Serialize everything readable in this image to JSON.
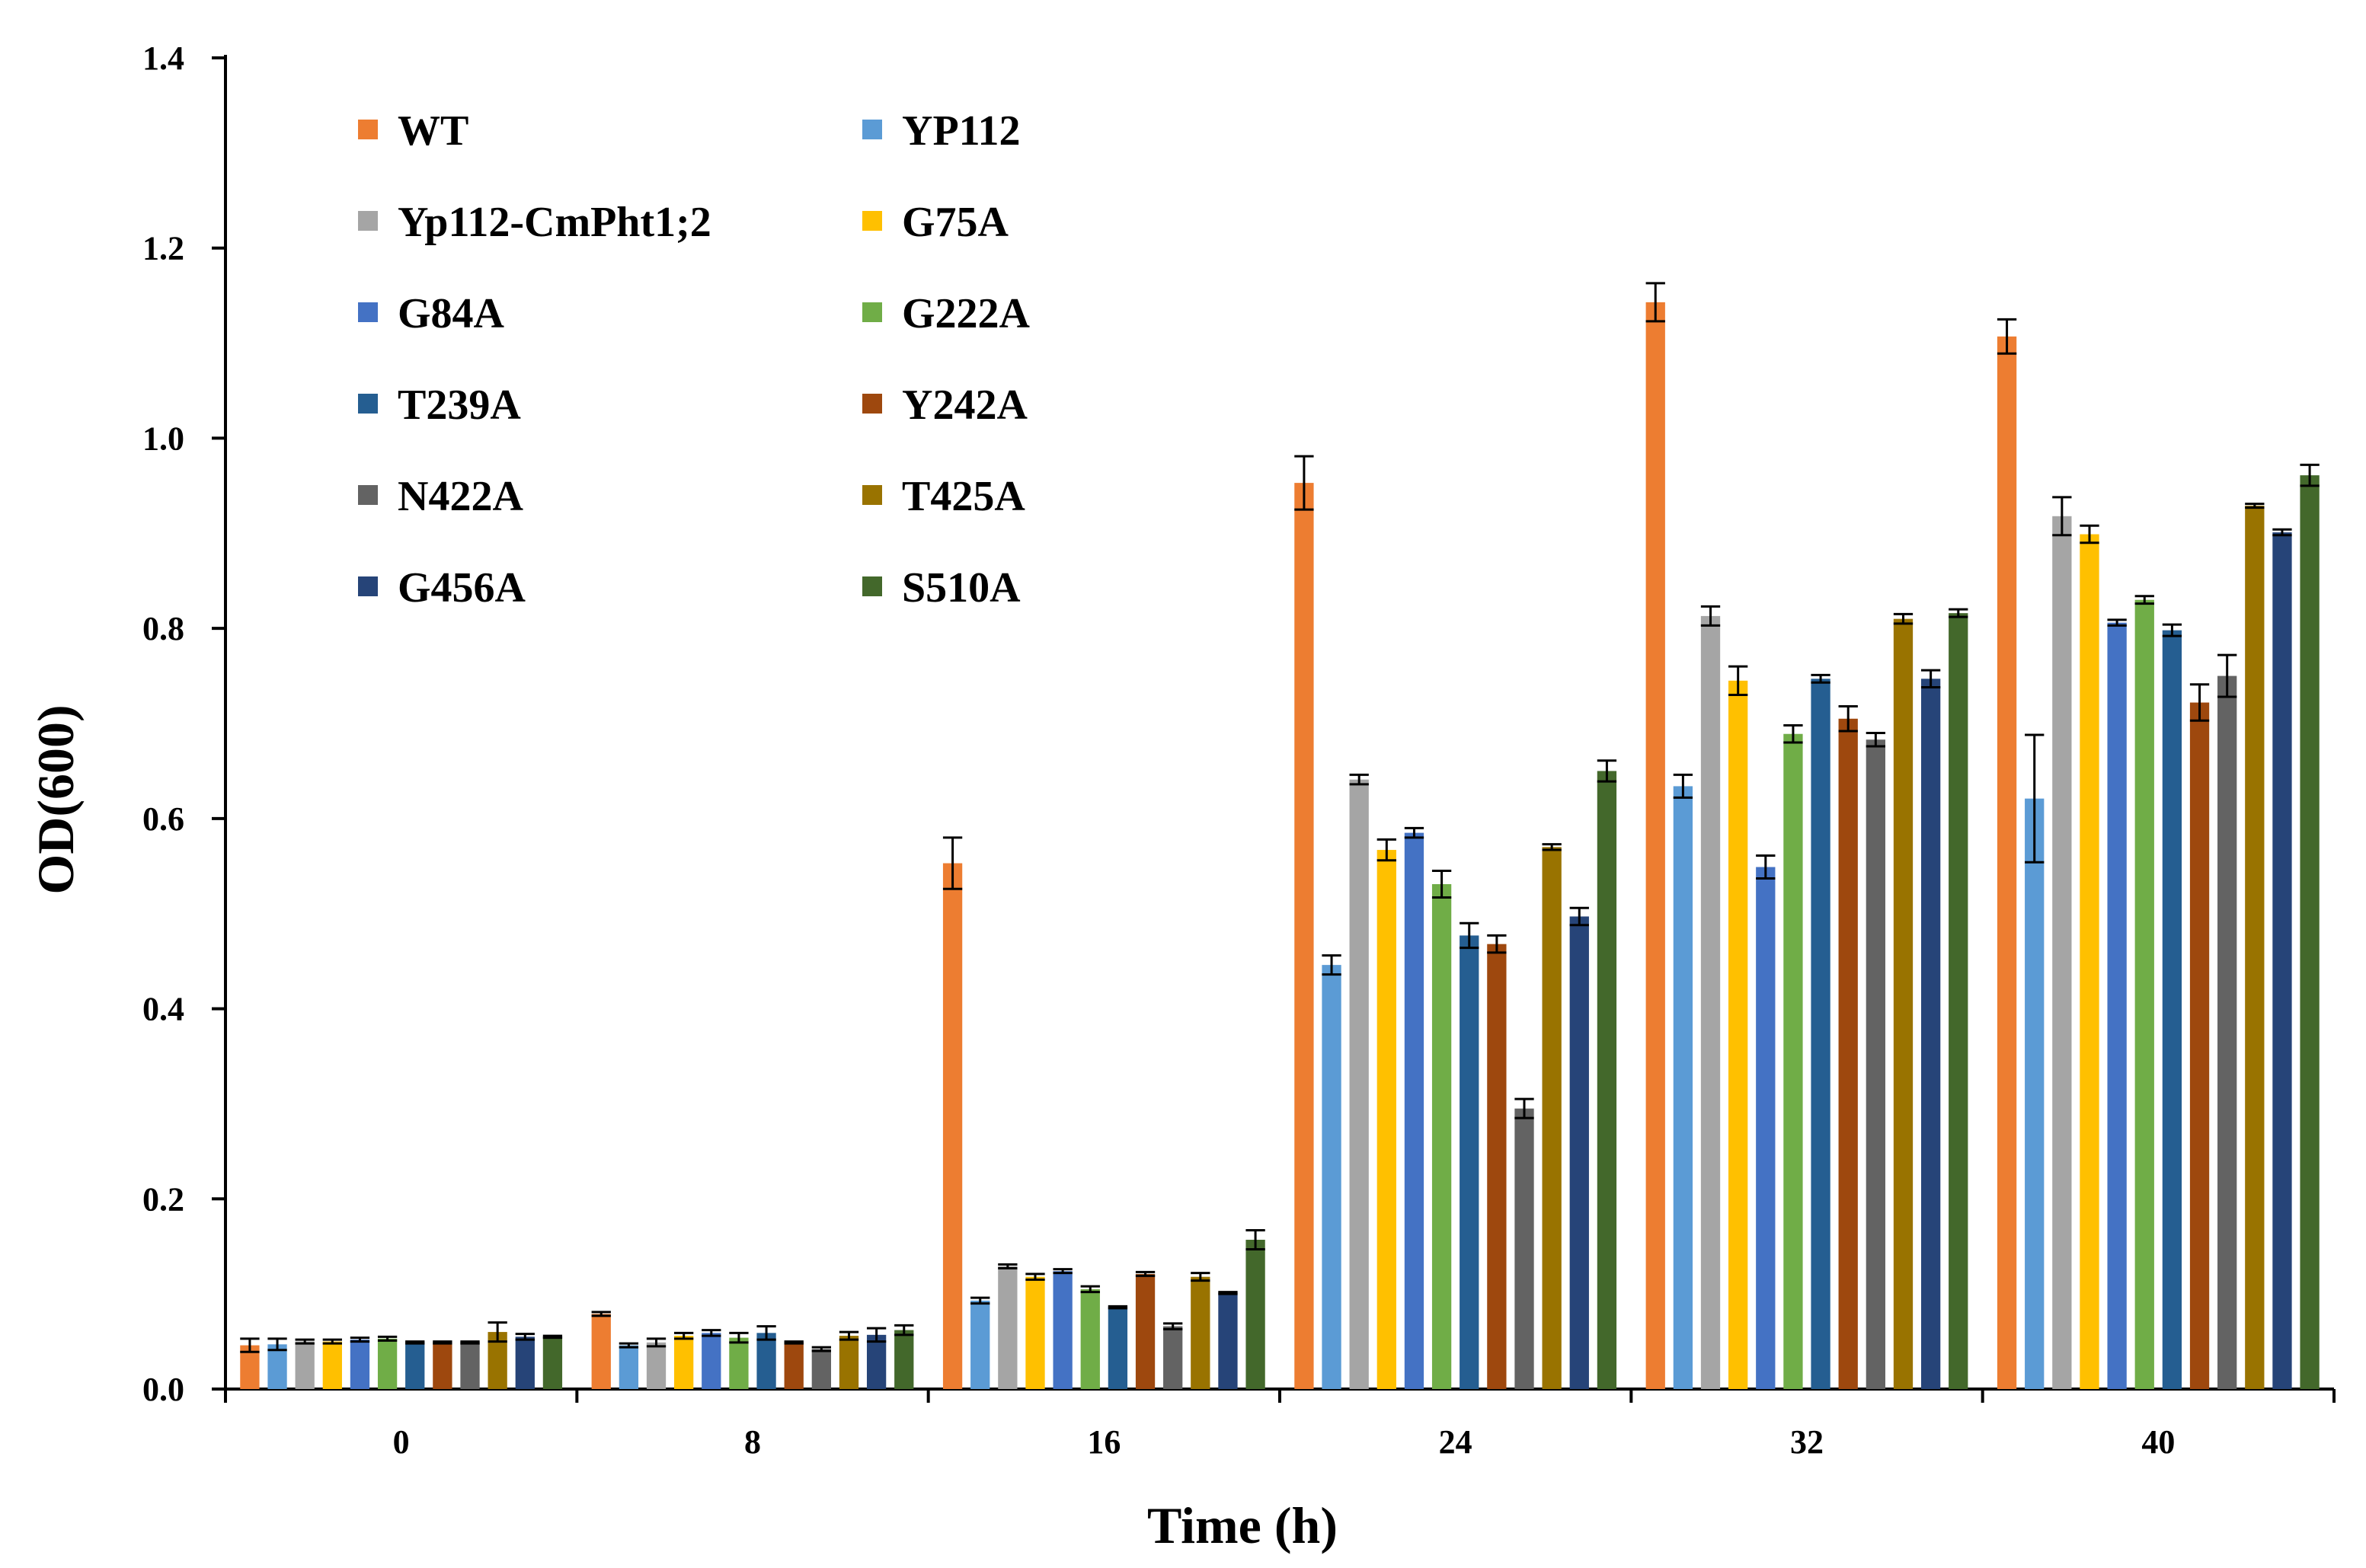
{
  "chart_data": {
    "type": "bar",
    "title": "",
    "xlabel": "Time (h)",
    "ylabel": "OD(600)",
    "categories": [
      "0",
      "8",
      "16",
      "24",
      "32",
      "40"
    ],
    "ylim": [
      0,
      1.4
    ],
    "yticks": [
      "0.0",
      "0.2",
      "0.4",
      "0.6",
      "0.8",
      "1.0",
      "1.2",
      "1.4"
    ],
    "grid": false,
    "legend_position": "top-left, two columns",
    "error_bars": true,
    "series": [
      {
        "name": "WT",
        "color": "#ED7D31",
        "values": [
          0.046,
          0.079,
          0.553,
          0.953,
          1.143,
          1.107
        ],
        "errors": [
          0.007,
          0.002,
          0.027,
          0.028,
          0.02,
          0.018
        ]
      },
      {
        "name": "YP112",
        "color": "#5B9BD5",
        "values": [
          0.047,
          0.046,
          0.093,
          0.446,
          0.634,
          0.621
        ],
        "errors": [
          0.006,
          0.002,
          0.003,
          0.01,
          0.012,
          0.067
        ]
      },
      {
        "name": "Yp112-CmPht1;2",
        "color": "#A5A5A5",
        "values": [
          0.05,
          0.049,
          0.129,
          0.641,
          0.813,
          0.918
        ],
        "errors": [
          0.002,
          0.004,
          0.002,
          0.005,
          0.01,
          0.02
        ]
      },
      {
        "name": "G75A",
        "color": "#FFC000",
        "values": [
          0.05,
          0.056,
          0.118,
          0.567,
          0.745,
          0.899
        ],
        "errors": [
          0.002,
          0.003,
          0.003,
          0.011,
          0.015,
          0.009
        ]
      },
      {
        "name": "G84A",
        "color": "#4472C4",
        "values": [
          0.052,
          0.059,
          0.124,
          0.585,
          0.549,
          0.806
        ],
        "errors": [
          0.002,
          0.003,
          0.002,
          0.005,
          0.012,
          0.003
        ]
      },
      {
        "name": "G222A",
        "color": "#70AD47",
        "values": [
          0.053,
          0.054,
          0.105,
          0.531,
          0.689,
          0.83
        ],
        "errors": [
          0.002,
          0.005,
          0.003,
          0.014,
          0.009,
          0.004
        ]
      },
      {
        "name": "T239A",
        "color": "#255E91",
        "values": [
          0.049,
          0.059,
          0.086,
          0.477,
          0.747,
          0.798
        ],
        "errors": [
          0.001,
          0.007,
          0.001,
          0.013,
          0.004,
          0.006
        ]
      },
      {
        "name": "Y242A",
        "color": "#9E480E",
        "values": [
          0.049,
          0.049,
          0.121,
          0.468,
          0.705,
          0.722
        ],
        "errors": [
          0.001,
          0.001,
          0.002,
          0.009,
          0.013,
          0.019
        ]
      },
      {
        "name": "N422A",
        "color": "#636363",
        "values": [
          0.049,
          0.042,
          0.066,
          0.295,
          0.683,
          0.75
        ],
        "errors": [
          0.001,
          0.002,
          0.003,
          0.01,
          0.007,
          0.022
        ]
      },
      {
        "name": "T425A",
        "color": "#997300",
        "values": [
          0.06,
          0.056,
          0.118,
          0.57,
          0.81,
          0.929
        ],
        "errors": [
          0.01,
          0.004,
          0.004,
          0.003,
          0.005,
          0.002
        ]
      },
      {
        "name": "G456A",
        "color": "#264478",
        "values": [
          0.055,
          0.057,
          0.101,
          0.497,
          0.747,
          0.901
        ],
        "errors": [
          0.003,
          0.007,
          0.001,
          0.009,
          0.009,
          0.003
        ]
      },
      {
        "name": "S510A",
        "color": "#43682B",
        "values": [
          0.055,
          0.062,
          0.157,
          0.65,
          0.816,
          0.961
        ],
        "errors": [
          0.001,
          0.005,
          0.01,
          0.011,
          0.004,
          0.011
        ]
      }
    ]
  }
}
